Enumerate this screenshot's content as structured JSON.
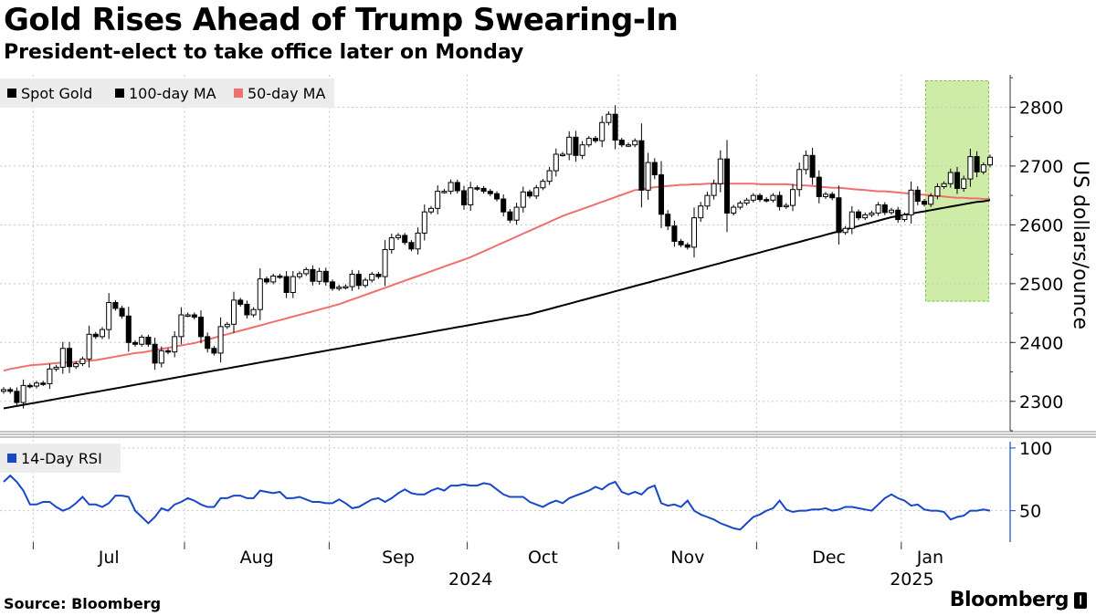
{
  "title": "Gold Rises Ahead of Trump Swearing-In",
  "subtitle": "President-elect to take office later on Monday",
  "source": "Source: Bloomberg",
  "brand": "Bloomberg",
  "brand_mark": "❙",
  "colors": {
    "candle": "#000000",
    "ma100": "#000000",
    "ma50": "#f07070",
    "rsi": "#1848c8",
    "highlight_fill": "#bde68a",
    "highlight_stroke": "#7cc43c",
    "axis": "#333333",
    "grid": "#c8c8c8"
  },
  "chart_data": [
    {
      "type": "candlestick",
      "panel": "price",
      "legend": [
        "Spot Gold",
        "100-day MA",
        "50-day MA"
      ],
      "ylabel": "US dollars/ounce",
      "ylim": [
        2250,
        2855
      ],
      "yticks": [
        2300,
        2400,
        2500,
        2600,
        2700,
        2800
      ],
      "grid": true,
      "highlight_window": {
        "from": "2025-01-07",
        "to": "2025-01-17",
        "ylow": 2470,
        "yhigh": 2845
      },
      "x_dates": [
        "2024-06-24",
        "2024-06-25",
        "2024-06-26",
        "2024-06-27",
        "2024-06-28",
        "2024-07-01",
        "2024-07-02",
        "2024-07-03",
        "2024-07-04",
        "2024-07-05",
        "2024-07-08",
        "2024-07-09",
        "2024-07-10",
        "2024-07-11",
        "2024-07-12",
        "2024-07-15",
        "2024-07-16",
        "2024-07-17",
        "2024-07-18",
        "2024-07-19",
        "2024-07-22",
        "2024-07-23",
        "2024-07-24",
        "2024-07-25",
        "2024-07-26",
        "2024-07-29",
        "2024-07-30",
        "2024-07-31",
        "2024-08-01",
        "2024-08-02",
        "2024-08-05",
        "2024-08-06",
        "2024-08-07",
        "2024-08-08",
        "2024-08-09",
        "2024-08-12",
        "2024-08-13",
        "2024-08-14",
        "2024-08-15",
        "2024-08-16",
        "2024-08-19",
        "2024-08-20",
        "2024-08-21",
        "2024-08-22",
        "2024-08-23",
        "2024-08-26",
        "2024-08-27",
        "2024-08-28",
        "2024-08-29",
        "2024-08-30",
        "2024-09-02",
        "2024-09-03",
        "2024-09-04",
        "2024-09-05",
        "2024-09-06",
        "2024-09-09",
        "2024-09-10",
        "2024-09-11",
        "2024-09-12",
        "2024-09-13",
        "2024-09-16",
        "2024-09-17",
        "2024-09-18",
        "2024-09-19",
        "2024-09-20",
        "2024-09-23",
        "2024-09-24",
        "2024-09-25",
        "2024-09-26",
        "2024-09-27",
        "2024-09-30",
        "2024-10-01",
        "2024-10-02",
        "2024-10-03",
        "2024-10-04",
        "2024-10-07",
        "2024-10-08",
        "2024-10-09",
        "2024-10-10",
        "2024-10-11",
        "2024-10-14",
        "2024-10-15",
        "2024-10-16",
        "2024-10-17",
        "2024-10-18",
        "2024-10-21",
        "2024-10-22",
        "2024-10-23",
        "2024-10-24",
        "2024-10-25",
        "2024-10-28",
        "2024-10-29",
        "2024-10-30",
        "2024-10-31",
        "2024-11-01",
        "2024-11-04",
        "2024-11-05",
        "2024-11-06",
        "2024-11-07",
        "2024-11-08",
        "2024-11-11",
        "2024-11-12",
        "2024-11-13",
        "2024-11-14",
        "2024-11-15",
        "2024-11-18",
        "2024-11-19",
        "2024-11-20",
        "2024-11-21",
        "2024-11-22",
        "2024-11-25",
        "2024-11-26",
        "2024-11-27",
        "2024-11-28",
        "2024-11-29",
        "2024-12-02",
        "2024-12-03",
        "2024-12-04",
        "2024-12-05",
        "2024-12-06",
        "2024-12-09",
        "2024-12-10",
        "2024-12-11",
        "2024-12-12",
        "2024-12-13",
        "2024-12-16",
        "2024-12-17",
        "2024-12-18",
        "2024-12-19",
        "2024-12-20",
        "2024-12-23",
        "2024-12-24",
        "2024-12-25",
        "2024-12-26",
        "2024-12-27",
        "2024-12-30",
        "2024-12-31",
        "2025-01-01",
        "2025-01-02",
        "2025-01-03",
        "2025-01-06",
        "2025-01-07",
        "2025-01-08",
        "2025-01-09",
        "2025-01-10",
        "2025-01-13",
        "2025-01-14",
        "2025-01-15",
        "2025-01-16",
        "2025-01-17",
        "2025-01-20"
      ],
      "close": [
        2320,
        2317,
        2298,
        2327,
        2326,
        2331,
        2330,
        2355,
        2358,
        2390,
        2359,
        2364,
        2372,
        2414,
        2410,
        2422,
        2468,
        2458,
        2445,
        2400,
        2397,
        2409,
        2397,
        2365,
        2386,
        2384,
        2410,
        2447,
        2447,
        2443,
        2410,
        2390,
        2382,
        2427,
        2431,
        2472,
        2465,
        2447,
        2456,
        2508,
        2503,
        2513,
        2512,
        2485,
        2512,
        2517,
        2524,
        2504,
        2521,
        2503,
        2492,
        2494,
        2495,
        2516,
        2497,
        2506,
        2516,
        2512,
        2558,
        2578,
        2582,
        2570,
        2559,
        2586,
        2622,
        2628,
        2657,
        2657,
        2672,
        2658,
        2634,
        2663,
        2662,
        2657,
        2653,
        2644,
        2622,
        2608,
        2630,
        2656,
        2649,
        2663,
        2674,
        2692,
        2720,
        2720,
        2749,
        2718,
        2736,
        2747,
        2743,
        2774,
        2788,
        2744,
        2736,
        2736,
        2743,
        2659,
        2706,
        2685,
        2618,
        2598,
        2572,
        2566,
        2562,
        2612,
        2632,
        2650,
        2670,
        2712,
        2620,
        2630,
        2637,
        2642,
        2650,
        2643,
        2642,
        2650,
        2631,
        2633,
        2660,
        2694,
        2718,
        2681,
        2648,
        2652,
        2646,
        2587,
        2594,
        2622,
        2612,
        2617,
        2620,
        2634,
        2621,
        2625,
        2609,
        2617,
        2659,
        2640,
        2635,
        2649,
        2665,
        2670,
        2689,
        2662,
        2678,
        2716,
        2690,
        2702,
        2715
      ],
      "ma50": [
        2352,
        2355,
        2357,
        2359,
        2361,
        2362,
        2363,
        2364,
        2365,
        2366,
        2366,
        2367,
        2368,
        2369,
        2370,
        2372,
        2374,
        2376,
        2378,
        2380,
        2382,
        2383,
        2385,
        2387,
        2389,
        2391,
        2393,
        2395,
        2397,
        2399,
        2402,
        2405,
        2408,
        2411,
        2414,
        2417,
        2420,
        2423,
        2426,
        2429,
        2432,
        2435,
        2438,
        2441,
        2444,
        2447,
        2450,
        2453,
        2456,
        2459,
        2462,
        2465,
        2469,
        2473,
        2477,
        2481,
        2485,
        2489,
        2493,
        2497,
        2501,
        2505,
        2509,
        2513,
        2517,
        2521,
        2525,
        2529,
        2533,
        2537,
        2541,
        2545,
        2550,
        2555,
        2560,
        2565,
        2570,
        2575,
        2580,
        2585,
        2590,
        2595,
        2600,
        2605,
        2610,
        2615,
        2619,
        2623,
        2627,
        2631,
        2635,
        2639,
        2643,
        2647,
        2651,
        2655,
        2659,
        2660,
        2662,
        2664,
        2665,
        2666,
        2667,
        2668,
        2668,
        2669,
        2669,
        2670,
        2670,
        2670,
        2670,
        2670,
        2670,
        2670,
        2670,
        2669,
        2669,
        2669,
        2669,
        2669,
        2668,
        2667,
        2667,
        2666,
        2665,
        2664,
        2663,
        2663,
        2662,
        2661,
        2660,
        2659,
        2658,
        2657,
        2657,
        2656,
        2655,
        2654,
        2653,
        2652,
        2651,
        2650,
        2649,
        2648,
        2647,
        2646,
        2646,
        2645,
        2645,
        2644,
        2644
      ],
      "ma100": [
        2288,
        2290,
        2292,
        2294,
        2296,
        2298,
        2300,
        2302,
        2304,
        2306,
        2308,
        2310,
        2312,
        2314,
        2316,
        2318,
        2320,
        2322,
        2324,
        2326,
        2328,
        2330,
        2332,
        2334,
        2336,
        2338,
        2340,
        2342,
        2344,
        2346,
        2348,
        2350,
        2352,
        2354,
        2356,
        2358,
        2360,
        2362,
        2364,
        2366,
        2368,
        2370,
        2372,
        2374,
        2376,
        2378,
        2380,
        2382,
        2384,
        2386,
        2388,
        2390,
        2392,
        2394,
        2396,
        2398,
        2400,
        2402,
        2404,
        2406,
        2408,
        2410,
        2412,
        2414,
        2416,
        2418,
        2420,
        2422,
        2424,
        2426,
        2428,
        2430,
        2432,
        2434,
        2436,
        2438,
        2440,
        2442,
        2444,
        2446,
        2448,
        2451,
        2454,
        2457,
        2460,
        2463,
        2466,
        2469,
        2472,
        2475,
        2478,
        2481,
        2484,
        2487,
        2490,
        2493,
        2496,
        2499,
        2502,
        2505,
        2508,
        2511,
        2514,
        2517,
        2520,
        2523,
        2526,
        2529,
        2532,
        2535,
        2538,
        2541,
        2544,
        2547,
        2550,
        2553,
        2556,
        2559,
        2562,
        2565,
        2568,
        2571,
        2574,
        2577,
        2580,
        2583,
        2586,
        2589,
        2592,
        2595,
        2598,
        2601,
        2604,
        2607,
        2610,
        2613,
        2615,
        2617,
        2619,
        2621,
        2623,
        2625,
        2627,
        2629,
        2631,
        2633,
        2635,
        2637,
        2639,
        2640,
        2642
      ]
    },
    {
      "type": "line",
      "panel": "rsi",
      "legend": [
        "14-Day RSI"
      ],
      "ylim": [
        25,
        105
      ],
      "yticks": [
        50,
        100
      ],
      "values": [
        73,
        78,
        73,
        66,
        55,
        55,
        57,
        57,
        53,
        50,
        52,
        56,
        61,
        55,
        55,
        53,
        56,
        62,
        62,
        61,
        50,
        45,
        40,
        45,
        52,
        50,
        55,
        57,
        60,
        58,
        55,
        53,
        53,
        60,
        60,
        62,
        62,
        60,
        60,
        66,
        65,
        64,
        65,
        60,
        60,
        61,
        59,
        57,
        57,
        56,
        56,
        59,
        56,
        52,
        53,
        56,
        59,
        60,
        57,
        60,
        64,
        67,
        64,
        63,
        63,
        66,
        68,
        66,
        70,
        70,
        71,
        70,
        70,
        72,
        71,
        67,
        63,
        61,
        61,
        61,
        57,
        55,
        53,
        56,
        58,
        56,
        60,
        62,
        64,
        66,
        69,
        67,
        71,
        73,
        65,
        63,
        65,
        63,
        68,
        70,
        56,
        54,
        55,
        53,
        58,
        50,
        47,
        45,
        43,
        40,
        38,
        36,
        35,
        40,
        45,
        47,
        50,
        52,
        58,
        51,
        49,
        50,
        50,
        51,
        51,
        52,
        50,
        51,
        53,
        53,
        52,
        51,
        50,
        55,
        60,
        63,
        60,
        58,
        54,
        55,
        51,
        50,
        50,
        49,
        43,
        45,
        46,
        50,
        50,
        51,
        50
      ]
    },
    {
      "type": "x-axis",
      "ticks": [
        "Jul",
        "Aug",
        "Sep",
        "Oct",
        "Nov",
        "Dec",
        "Jan"
      ],
      "years": [
        "2024",
        "2025"
      ]
    }
  ]
}
